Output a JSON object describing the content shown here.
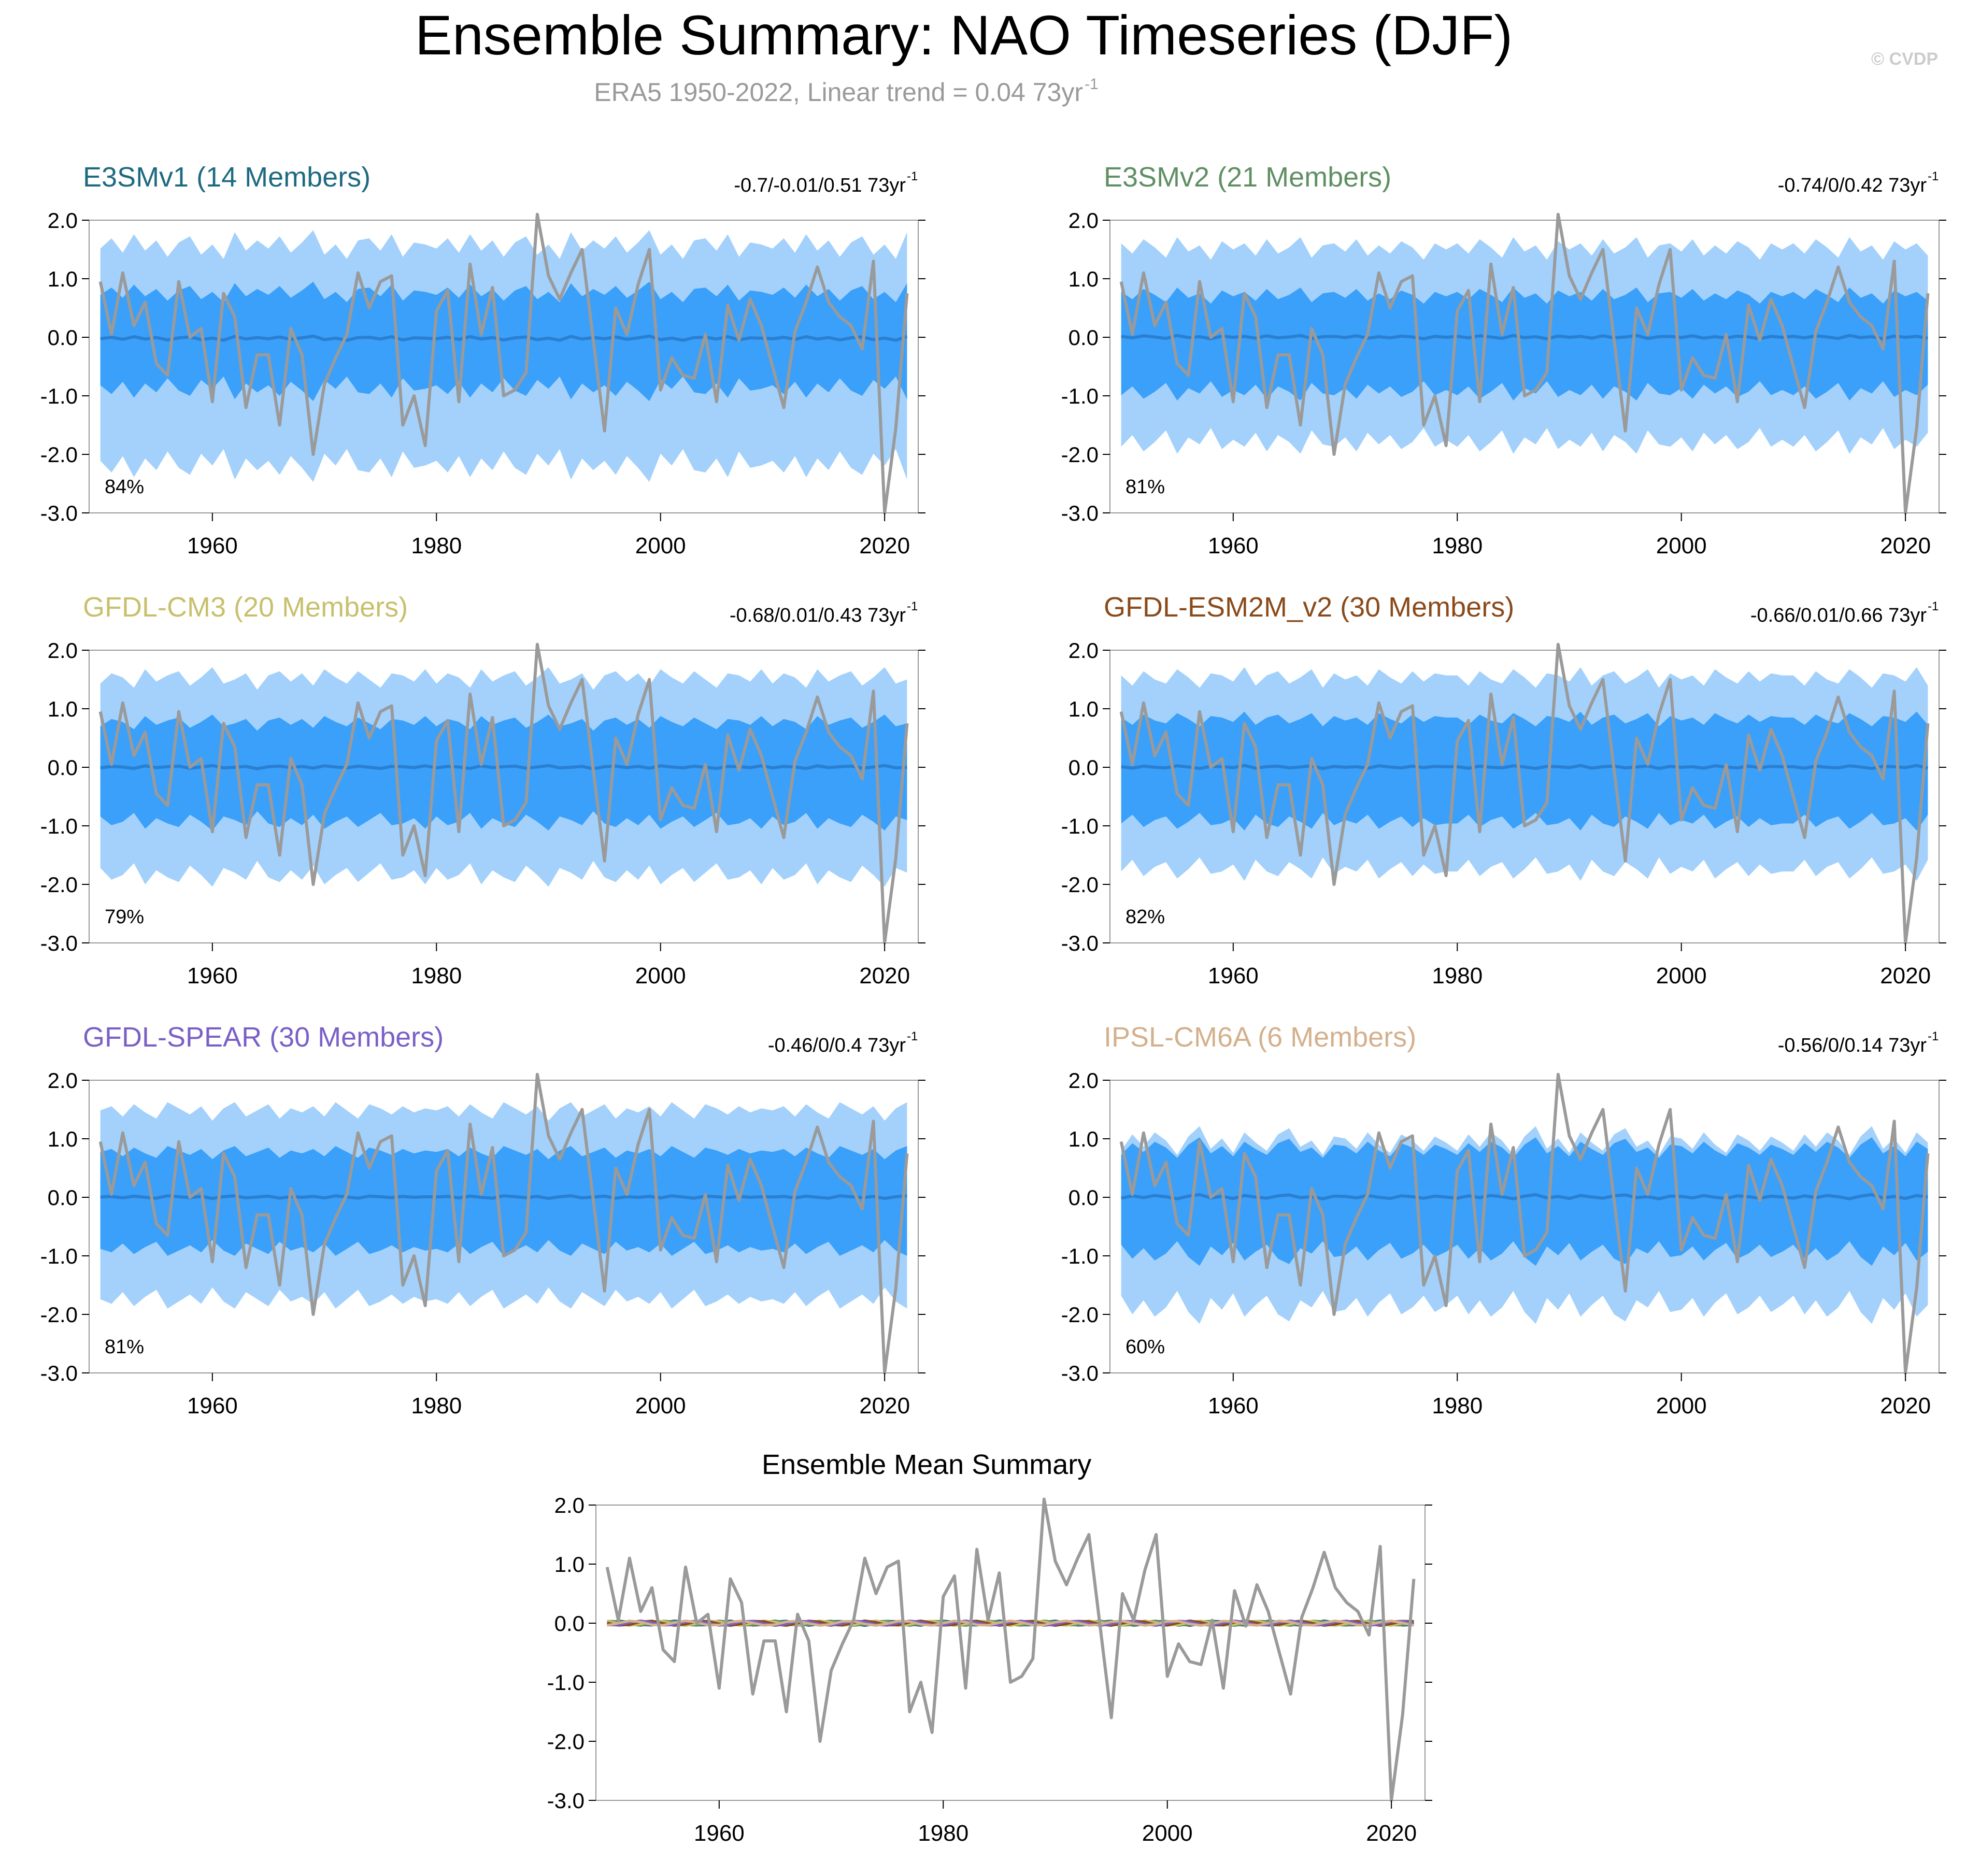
{
  "page": {
    "title": "Ensemble Summary: NAO Timeseries (DJF)",
    "subtitle_main": "ERA5 1950-2022, Linear trend = 0.04 73yr",
    "subtitle_sup": "-1",
    "watermark": "© CVDP"
  },
  "colors": {
    "outer_band": "#a3d1fb",
    "inner_band": "#3aa0fa",
    "ensemble_mean": "#2b7fd0",
    "observed": "#9a9a9a",
    "axis": "#000000",
    "subtitle": "#9a9a9a",
    "watermark": "#cccccc"
  },
  "chart_data": [
    {
      "type": "area",
      "title": "E3SMv1 (14 Members)",
      "title_color": "#1d6a80",
      "trend_label": "-0.7/-0.01/0.51 73yr",
      "trend_sup": "-1",
      "percent_label": "84%",
      "xlim": [
        1949,
        2023
      ],
      "ylim": [
        -3.0,
        2.0
      ],
      "yticks": [
        "2.0",
        "1.0",
        "0.0",
        "-1.0",
        "-2.0",
        "-3.0"
      ],
      "xticks": [
        "1960",
        "1980",
        "2000",
        "2020"
      ],
      "band_outer": [
        1.55,
        -2.15
      ],
      "band_inner": [
        0.75,
        -0.85
      ],
      "mean": -0.02,
      "bumps": [
        -0.1,
        0.4,
        -0.3,
        0.6,
        -0.2,
        0.3,
        -0.5,
        0.2,
        0.5,
        -0.4,
        0.1,
        -0.6,
        0.7,
        -0.2,
        0.3,
        -0.1,
        0.5,
        -0.3,
        0.2,
        0.8,
        -0.4,
        0.1,
        -0.6,
        0.3,
        0.4,
        -0.2,
        0.6,
        -0.5,
        0.2,
        0.1
      ]
    },
    {
      "type": "area",
      "title": "E3SMv2 (21 Members)",
      "title_color": "#5f8f63",
      "trend_label": "-0.74/0/0.42 73yr",
      "trend_sup": "-1",
      "percent_label": "81%",
      "xlim": [
        1949,
        2023
      ],
      "ylim": [
        -3.0,
        2.0
      ],
      "yticks": [
        "2.0",
        "1.0",
        "0.0",
        "-1.0",
        "-2.0",
        "-3.0"
      ],
      "xticks": [
        "1960",
        "1980",
        "2000",
        "2020"
      ],
      "band_outer": [
        1.5,
        -1.75
      ],
      "band_inner": [
        0.7,
        -0.9
      ],
      "mean": 0.0,
      "bumps": [
        0.3,
        -0.2,
        0.5,
        0.1,
        -0.4,
        0.6,
        -0.1,
        0.2,
        -0.5,
        0.4,
        0.0,
        0.3,
        -0.3,
        0.5,
        -0.2,
        0.1,
        0.6,
        -0.4,
        0.2,
        0.3,
        -0.1,
        0.5,
        -0.3,
        0.2,
        -0.2,
        0.4,
        0.1,
        -0.5,
        0.3,
        0.0
      ]
    },
    {
      "type": "area",
      "title": "GFDL-CM3 (20 Members)",
      "title_color": "#c8c06c",
      "trend_label": "-0.68/0.01/0.43 73yr",
      "trend_sup": "-1",
      "percent_label": "79%",
      "xlim": [
        1949,
        2023
      ],
      "ylim": [
        -3.0,
        2.0
      ],
      "yticks": [
        "2.0",
        "1.0",
        "0.0",
        "-1.0",
        "-2.0",
        "-3.0"
      ],
      "xticks": [
        "1960",
        "1980",
        "2000",
        "2020"
      ],
      "band_outer": [
        1.5,
        -1.8
      ],
      "band_inner": [
        0.75,
        -0.9
      ],
      "mean": 0.0,
      "bumps": [
        -0.2,
        0.3,
        0.1,
        -0.4,
        0.5,
        -0.1,
        0.2,
        0.4,
        -0.3,
        0.1,
        0.6,
        -0.2,
        0.0,
        0.3,
        -0.5,
        0.2,
        0.4,
        -0.1,
        0.3,
        -0.3,
        0.5,
        0.1,
        -0.2,
        0.4,
        0.0,
        -0.4,
        0.3,
        0.2,
        -0.1,
        0.5
      ]
    },
    {
      "type": "area",
      "title": "GFDL-ESM2M_v2 (30 Members)",
      "title_color": "#8a4a1a",
      "trend_label": "-0.66/0.01/0.66 73yr",
      "trend_sup": "-1",
      "percent_label": "82%",
      "xlim": [
        1949,
        2023
      ],
      "ylim": [
        -3.0,
        2.0
      ],
      "yticks": [
        "2.0",
        "1.0",
        "0.0",
        "-1.0",
        "-2.0",
        "-3.0"
      ],
      "xticks": [
        "1960",
        "1980",
        "2000",
        "2020"
      ],
      "band_outer": [
        1.5,
        -1.7
      ],
      "band_inner": [
        0.8,
        -0.9
      ],
      "mean": 0.0,
      "bumps": [
        0.2,
        -0.3,
        0.4,
        0.0,
        -0.2,
        0.5,
        0.1,
        -0.4,
        0.3,
        0.2,
        -0.1,
        0.6,
        -0.3,
        0.2,
        0.4,
        -0.2,
        0.1,
        0.5,
        -0.4,
        0.3,
        0.0,
        0.2,
        -0.3,
        0.5,
        0.1,
        -0.2,
        0.4,
        -0.1,
        0.3,
        0.2
      ]
    },
    {
      "type": "area",
      "title": "GFDL-SPEAR (30 Members)",
      "title_color": "#7a5fc7",
      "trend_label": "-0.46/0/0.4 73yr",
      "trend_sup": "-1",
      "percent_label": "81%",
      "xlim": [
        1949,
        2023
      ],
      "ylim": [
        -3.0,
        2.0
      ],
      "yticks": [
        "2.0",
        "1.0",
        "0.0",
        "-1.0",
        "-2.0",
        "-3.0"
      ],
      "xticks": [
        "1960",
        "1980",
        "2000",
        "2020"
      ],
      "band_outer": [
        1.45,
        -1.7
      ],
      "band_inner": [
        0.75,
        -0.85
      ],
      "mean": 0.0,
      "bumps": [
        0.1,
        0.3,
        -0.2,
        0.4,
        0.0,
        -0.3,
        0.5,
        0.2,
        -0.1,
        0.3,
        -0.4,
        0.2,
        0.5,
        -0.2,
        0.1,
        0.4,
        -0.3,
        0.2,
        0.0,
        0.3,
        -0.2,
        0.5,
        0.1,
        -0.3,
        0.4,
        0.2,
        -0.1,
        0.3,
        0.0,
        0.2
      ]
    },
    {
      "type": "area",
      "title": "IPSL-CM6A (6 Members)",
      "title_color": "#d4b08c",
      "trend_label": "-0.56/0/0.14 73yr",
      "trend_sup": "-1",
      "percent_label": "60%",
      "xlim": [
        1949,
        2023
      ],
      "ylim": [
        -3.0,
        2.0
      ],
      "yticks": [
        "2.0",
        "1.0",
        "0.0",
        "-1.0",
        "-2.0",
        "-3.0"
      ],
      "xticks": [
        "1960",
        "1980",
        "2000",
        "2020"
      ],
      "band_outer": [
        0.9,
        -1.8
      ],
      "band_inner": [
        0.8,
        -0.9
      ],
      "mean": 0.0,
      "bumps": [
        -0.3,
        0.5,
        -0.1,
        0.6,
        0.2,
        -0.5,
        0.4,
        0.9,
        -0.2,
        0.3,
        -0.4,
        0.6,
        0.1,
        -0.3,
        0.5,
        0.8,
        -0.1,
        0.2,
        -0.5,
        0.4,
        0.3,
        -0.2,
        0.6,
        0.0,
        -0.4,
        0.5,
        0.2,
        -0.3,
        0.4,
        0.1
      ]
    },
    {
      "type": "line",
      "title": "Ensemble Mean Summary",
      "xlim": [
        1949,
        2023
      ],
      "ylim": [
        -3.0,
        2.0
      ],
      "yticks": [
        "2.0",
        "1.0",
        "0.0",
        "-1.0",
        "-2.0",
        "-3.0"
      ],
      "xticks": [
        "1960",
        "1980",
        "2000",
        "2020"
      ],
      "model_colors": [
        "#1d6a80",
        "#5f8f63",
        "#c8c06c",
        "#8a4a1a",
        "#7a5fc7",
        "#d4b08c"
      ]
    }
  ],
  "observed_series": {
    "name": "ERA5",
    "x_start": 1950,
    "values": [
      0.95,
      0.05,
      1.1,
      0.2,
      0.6,
      -0.45,
      -0.65,
      0.95,
      0.0,
      0.15,
      -1.1,
      0.75,
      0.35,
      -1.2,
      -0.3,
      -0.3,
      -1.5,
      0.15,
      -0.3,
      -2.0,
      -0.8,
      -0.35,
      0.05,
      1.1,
      0.5,
      0.95,
      1.05,
      -1.5,
      -1.0,
      -1.85,
      0.45,
      0.8,
      -1.1,
      1.25,
      0.05,
      0.85,
      -1.0,
      -0.9,
      -0.6,
      2.1,
      1.05,
      0.65,
      1.1,
      1.5,
      -0.05,
      -1.6,
      0.5,
      0.05,
      0.9,
      1.5,
      -0.9,
      -0.35,
      -0.65,
      -0.7,
      0.05,
      -1.1,
      0.55,
      -0.05,
      0.65,
      0.2,
      -0.5,
      -1.2,
      0.1,
      0.6,
      1.2,
      0.6,
      0.35,
      0.2,
      -0.2,
      1.3,
      -3.0,
      -1.55,
      0.75
    ]
  }
}
